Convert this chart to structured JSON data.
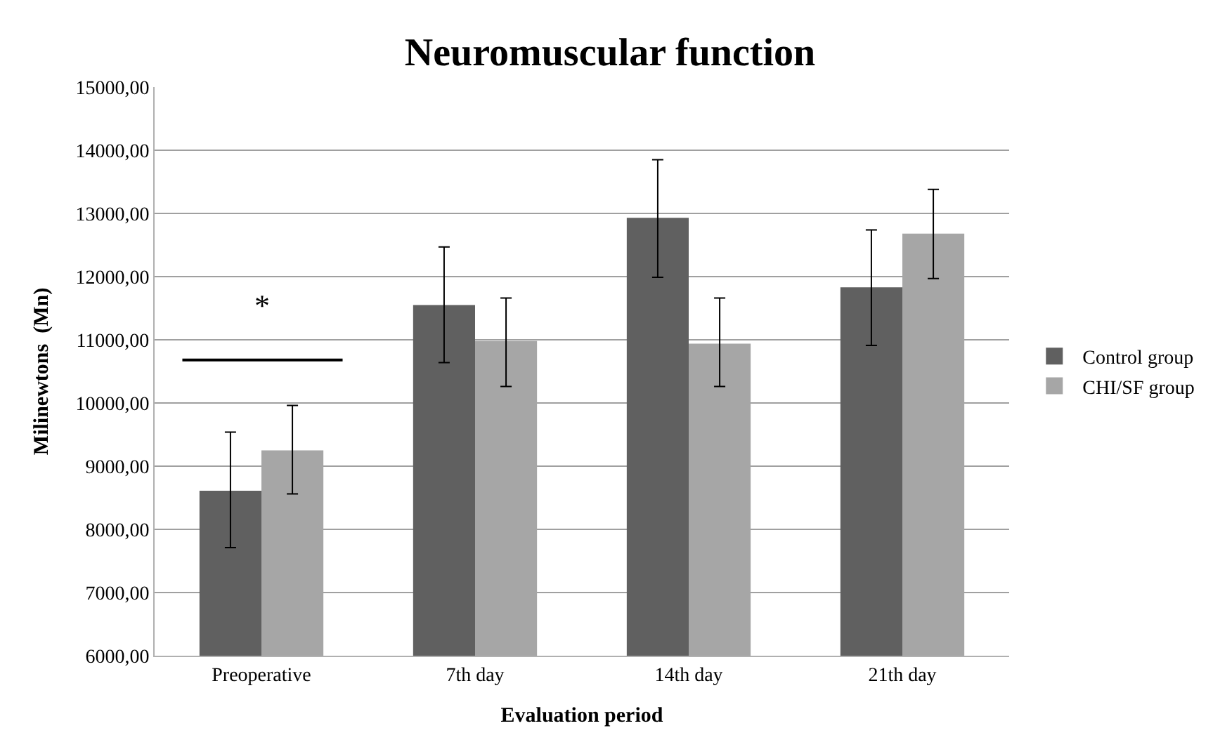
{
  "chart_data": {
    "type": "bar",
    "title": "Neuromuscular function",
    "xlabel": "Evaluation period",
    "ylabel": "Milinewtons  (Mn)",
    "categories": [
      "Preoperative",
      "7th day",
      "14th day",
      "21th day"
    ],
    "series": [
      {
        "name": "Control group",
        "color": "#606060",
        "values": [
          8610,
          11550,
          12930,
          11830
        ],
        "errors": [
          [
            7710,
            9540
          ],
          [
            10640,
            12470
          ],
          [
            11990,
            13850
          ],
          [
            10910,
            12740
          ]
        ]
      },
      {
        "name": "CHI/SF group",
        "color": "#a6a6a6",
        "values": [
          9250,
          10980,
          10940,
          12680
        ],
        "errors": [
          [
            8560,
            9960
          ],
          [
            10260,
            11660
          ],
          [
            10260,
            11660
          ],
          [
            11970,
            13380
          ]
        ]
      }
    ],
    "annotations": [
      "*"
    ],
    "ylim": [
      6000,
      15000
    ],
    "yticks": [
      {
        "value": 6000,
        "label": "6000,00"
      },
      {
        "value": 7000,
        "label": "7000,00"
      },
      {
        "value": 8000,
        "label": "8000,00"
      },
      {
        "value": 9000,
        "label": "9000,00"
      },
      {
        "value": 10000,
        "label": "10000,00"
      },
      {
        "value": 11000,
        "label": "11000,00"
      },
      {
        "value": 12000,
        "label": "12000,00"
      },
      {
        "value": 13000,
        "label": "13000,00"
      },
      {
        "value": 14000,
        "label": "14000,00"
      },
      {
        "value": 15000,
        "label": "15000,00"
      }
    ],
    "grid": "y",
    "legend": "right"
  }
}
